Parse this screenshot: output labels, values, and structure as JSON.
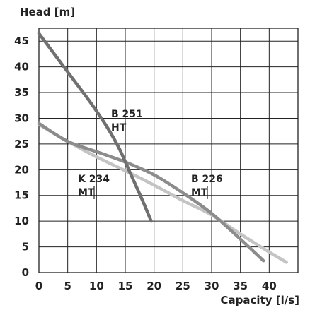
{
  "chart_data": {
    "type": "line",
    "xlabel": "Capacity [l/s]",
    "ylabel": "Head [m]",
    "xlim": [
      0,
      45
    ],
    "ylim": [
      0,
      47.5
    ],
    "x_ticks": [
      0,
      5,
      10,
      15,
      20,
      25,
      30,
      35,
      40
    ],
    "y_ticks": [
      0,
      5,
      10,
      15,
      20,
      25,
      30,
      35,
      40,
      45
    ],
    "x_tick_labels": [
      "0",
      "5",
      "10",
      "15",
      "20",
      "25",
      "30",
      "35",
      "40"
    ],
    "y_tick_labels": [
      "0",
      "5",
      "10",
      "15",
      "20",
      "25",
      "30",
      "35",
      "40",
      "45"
    ],
    "grid": true,
    "series": [
      {
        "name": "B 251 HT",
        "label_lines": [
          "B 251",
          "HT"
        ],
        "color": "#707070",
        "x": [
          0,
          3,
          6,
          9,
          12,
          14,
          16,
          18,
          19.5
        ],
        "y": [
          46.5,
          42,
          37.5,
          33,
          28,
          24,
          19,
          14,
          10
        ]
      },
      {
        "name": "B 226 MT",
        "label_lines": [
          "B 226",
          "MT"
        ],
        "color": "#8c8c8c",
        "x": [
          0,
          5,
          10,
          15,
          20,
          25,
          30,
          35,
          39
        ],
        "y": [
          29,
          25.5,
          23.5,
          21.5,
          19,
          15.5,
          11.5,
          6.5,
          2.3
        ]
      },
      {
        "name": "K 234 MT",
        "label_lines": [
          "K 234",
          "MT"
        ],
        "color": "#c4c4c4",
        "x": [
          0,
          5,
          10,
          15,
          20,
          25,
          30,
          35,
          40,
          43
        ],
        "y": [
          28.8,
          25.5,
          22.5,
          19.8,
          17,
          14,
          11.2,
          7.5,
          4,
          2
        ]
      }
    ]
  }
}
